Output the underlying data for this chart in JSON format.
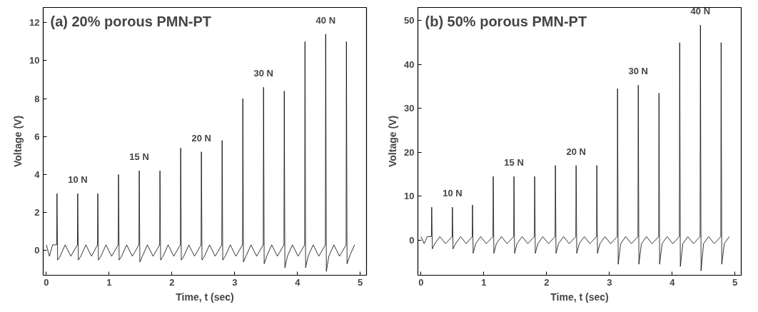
{
  "chart_data": [
    {
      "type": "line",
      "title": "(a)  20% porous PMN-PT",
      "xlabel": "Time, t (sec)",
      "ylabel": "Voltage (V)",
      "xlim": [
        -0.05,
        5.1
      ],
      "xticks": [
        0,
        1,
        2,
        3,
        4,
        5
      ],
      "ylim": [
        -1.3,
        12.8
      ],
      "yticks": [
        0,
        2,
        4,
        6,
        8,
        10,
        12
      ],
      "grid": false,
      "x": [
        0,
        0.05,
        0.1,
        0.165,
        0.17,
        0.18,
        0.22,
        0.3,
        0.39,
        0.495,
        0.5,
        0.51,
        0.55,
        0.63,
        0.72,
        0.815,
        0.82,
        0.83,
        0.87,
        0.95,
        1.04,
        1.145,
        1.15,
        1.16,
        1.2,
        1.28,
        1.37,
        1.475,
        1.48,
        1.49,
        1.53,
        1.61,
        1.7,
        1.805,
        1.81,
        1.82,
        1.86,
        1.94,
        2.03,
        2.135,
        2.14,
        2.15,
        2.19,
        2.27,
        2.36,
        2.465,
        2.47,
        2.48,
        2.52,
        2.6,
        2.69,
        2.795,
        2.8,
        2.81,
        2.85,
        2.93,
        3.02,
        3.125,
        3.13,
        3.14,
        3.18,
        3.26,
        3.35,
        3.455,
        3.46,
        3.47,
        3.51,
        3.59,
        3.68,
        3.785,
        3.79,
        3.8,
        3.84,
        3.92,
        4.01,
        4.115,
        4.12,
        4.13,
        4.17,
        4.25,
        4.34,
        4.445,
        4.45,
        4.46,
        4.5,
        4.58,
        4.67,
        4.775,
        4.78,
        4.79,
        4.83,
        4.91
      ],
      "series": [
        {
          "color": "#000000",
          "values": [
            0.3,
            -0.3,
            0.3,
            0.3,
            3.0,
            -0.5,
            -0.3,
            0.3,
            -0.3,
            0.3,
            3.0,
            -0.5,
            -0.3,
            0.3,
            -0.3,
            0.3,
            3.0,
            -0.5,
            -0.3,
            0.3,
            -0.3,
            0.3,
            4.0,
            -0.5,
            -0.3,
            0.3,
            -0.3,
            0.3,
            4.2,
            -0.6,
            -0.3,
            0.3,
            -0.3,
            0.3,
            4.2,
            -0.5,
            -0.3,
            0.3,
            -0.3,
            0.3,
            5.4,
            -0.5,
            -0.3,
            0.3,
            -0.3,
            0.3,
            5.2,
            -0.5,
            -0.3,
            0.3,
            -0.3,
            0.3,
            5.8,
            -0.5,
            -0.3,
            0.3,
            -0.3,
            0.3,
            8.0,
            -0.6,
            -0.3,
            0.3,
            -0.3,
            0.3,
            8.6,
            -0.7,
            -0.3,
            0.3,
            -0.3,
            0.3,
            8.4,
            -0.9,
            -0.3,
            0.3,
            -0.3,
            0.3,
            11.0,
            -0.9,
            -0.3,
            0.3,
            -0.3,
            0.3,
            11.4,
            -1.1,
            -0.3,
            0.3,
            -0.3,
            0.3,
            11.0,
            -0.7,
            -0.3,
            0.3
          ]
        }
      ],
      "annotations": [
        {
          "text": "10 N",
          "x": 0.5,
          "y": 3.0
        },
        {
          "text": "15 N",
          "x": 1.48,
          "y": 4.2
        },
        {
          "text": "20 N",
          "x": 2.47,
          "y": 5.2
        },
        {
          "text": "30 N",
          "x": 3.46,
          "y": 8.6
        },
        {
          "text": "40 N",
          "x": 4.45,
          "y": 11.4
        }
      ]
    },
    {
      "type": "line",
      "title": "(b)  50% porous PMN-PT",
      "xlabel": "Time, t (sec)",
      "ylabel": "Voltage (V)",
      "xlim": [
        -0.05,
        5.1
      ],
      "xticks": [
        0,
        1,
        2,
        3,
        4,
        5
      ],
      "ylim": [
        -8,
        53
      ],
      "yticks": [
        0,
        10,
        20,
        30,
        40,
        50
      ],
      "grid": false,
      "x": [
        0,
        0.05,
        0.1,
        0.165,
        0.17,
        0.18,
        0.22,
        0.3,
        0.39,
        0.495,
        0.5,
        0.51,
        0.55,
        0.63,
        0.72,
        0.815,
        0.82,
        0.83,
        0.87,
        0.95,
        1.04,
        1.145,
        1.15,
        1.16,
        1.2,
        1.28,
        1.37,
        1.475,
        1.48,
        1.49,
        1.53,
        1.61,
        1.7,
        1.805,
        1.81,
        1.82,
        1.86,
        1.94,
        2.03,
        2.135,
        2.14,
        2.15,
        2.19,
        2.27,
        2.36,
        2.465,
        2.47,
        2.48,
        2.52,
        2.6,
        2.69,
        2.795,
        2.8,
        2.81,
        2.85,
        2.93,
        3.02,
        3.125,
        3.13,
        3.14,
        3.18,
        3.26,
        3.35,
        3.455,
        3.46,
        3.47,
        3.51,
        3.59,
        3.68,
        3.785,
        3.79,
        3.8,
        3.84,
        3.92,
        4.01,
        4.115,
        4.12,
        4.13,
        4.17,
        4.25,
        4.34,
        4.445,
        4.45,
        4.46,
        4.5,
        4.58,
        4.67,
        4.775,
        4.78,
        4.79,
        4.83,
        4.91
      ],
      "series": [
        {
          "color": "#000000",
          "values": [
            0.8,
            -0.8,
            0.8,
            0.8,
            7.5,
            -2,
            -0.8,
            0.8,
            -0.8,
            0.8,
            7.5,
            -2,
            -0.8,
            0.8,
            -0.8,
            0.8,
            8,
            -3,
            -0.8,
            0.8,
            -0.8,
            0.8,
            14.5,
            -3,
            -0.8,
            0.8,
            -0.8,
            0.8,
            14.5,
            -3,
            -0.8,
            0.8,
            -0.8,
            0.8,
            14.5,
            -3,
            -0.8,
            0.8,
            -0.8,
            0.8,
            17,
            -3,
            -0.8,
            0.8,
            -0.8,
            0.8,
            17,
            -3,
            -0.8,
            0.8,
            -0.8,
            0.8,
            17,
            -3,
            -0.8,
            0.8,
            -0.8,
            0.8,
            34.5,
            -5.5,
            -0.8,
            0.8,
            -0.8,
            0.8,
            35.3,
            -5.5,
            -0.8,
            0.8,
            -0.8,
            0.8,
            33.5,
            -5.5,
            -0.8,
            0.8,
            -0.8,
            0.8,
            45,
            -6,
            -0.8,
            0.8,
            -0.8,
            0.8,
            49,
            -7,
            -0.8,
            0.8,
            -0.8,
            0.8,
            45,
            -5.5,
            -0.8,
            0.8
          ]
        }
      ],
      "annotations": [
        {
          "text": "10 N",
          "x": 0.5,
          "y": 7.5
        },
        {
          "text": "15 N",
          "x": 1.48,
          "y": 14.5
        },
        {
          "text": "20 N",
          "x": 2.47,
          "y": 17
        },
        {
          "text": "30 N",
          "x": 3.46,
          "y": 35.3
        },
        {
          "text": "40 N",
          "x": 4.45,
          "y": 49
        }
      ]
    }
  ]
}
